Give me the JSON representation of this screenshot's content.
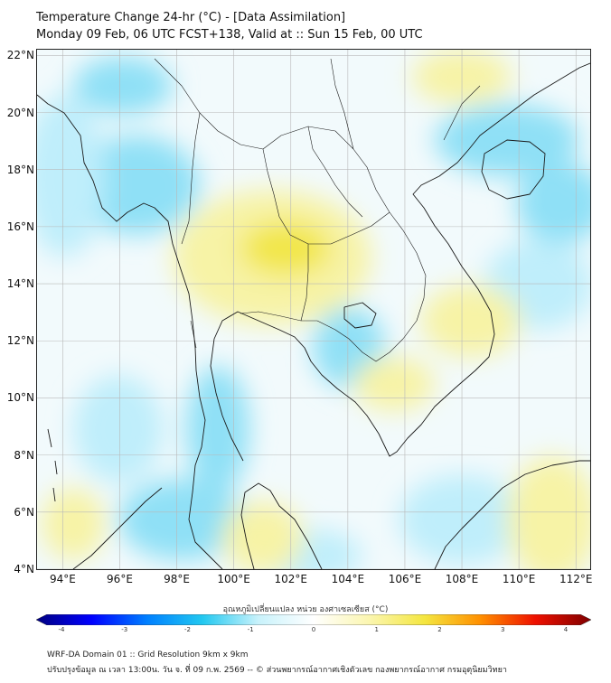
{
  "header": {
    "title": "Temperature Change 24-hr (°C) - [Data Assimilation]",
    "subtitle": "Monday 09 Feb, 06 UTC FCST+138, Valid at :: Sun 15 Feb, 00 UTC"
  },
  "map": {
    "lat_labels": [
      "22°N",
      "20°N",
      "18°N",
      "16°N",
      "14°N",
      "12°N",
      "10°N",
      "8°N",
      "6°N",
      "4°N"
    ],
    "lon_labels": [
      "94°E",
      "96°E",
      "98°E",
      "100°E",
      "102°E",
      "104°E",
      "106°E",
      "108°E",
      "110°E",
      "112°E"
    ],
    "lat_range": [
      4,
      22.2
    ],
    "lon_range": [
      93.1,
      112.5
    ],
    "colors": {
      "ocean_base": "#f2fafc",
      "cooling_light": "#bfeefb",
      "cooling_mid": "#8fe0f6",
      "warming_light": "#f7f3a6",
      "warming_mid": "#f2e64a",
      "coastline": "#1a1a1a",
      "grid": "#b8b8b8"
    }
  },
  "colorbar": {
    "title": "อุณหภูมิเปลี่ยนแปลง หน่วย องศาเซลเซียส (°C)",
    "ticks": [
      "-4",
      "-3",
      "-2",
      "-1",
      "0",
      "1",
      "2",
      "3",
      "4"
    ],
    "range": [
      -4,
      4
    ],
    "stops": [
      "#00007f",
      "#0000ff",
      "#0080ff",
      "#22c8f0",
      "#c8f2fb",
      "#ffffff",
      "#fbf6b0",
      "#f4e640",
      "#ff9000",
      "#ee1000",
      "#7f0000"
    ]
  },
  "footer": {
    "line1": "WRF-DA Domain 01 :: Grid Resolution 9km x 9km",
    "line2": "ปรับปรุงข้อมูล ณ เวลา 13:00น. วัน จ. ที่ 09 ก.พ. 2569 -- © ส่วนพยากรณ์อากาศเชิงตัวเลข กองพยากรณ์อากาศ กรมอุตุนิยมวิทยา"
  }
}
